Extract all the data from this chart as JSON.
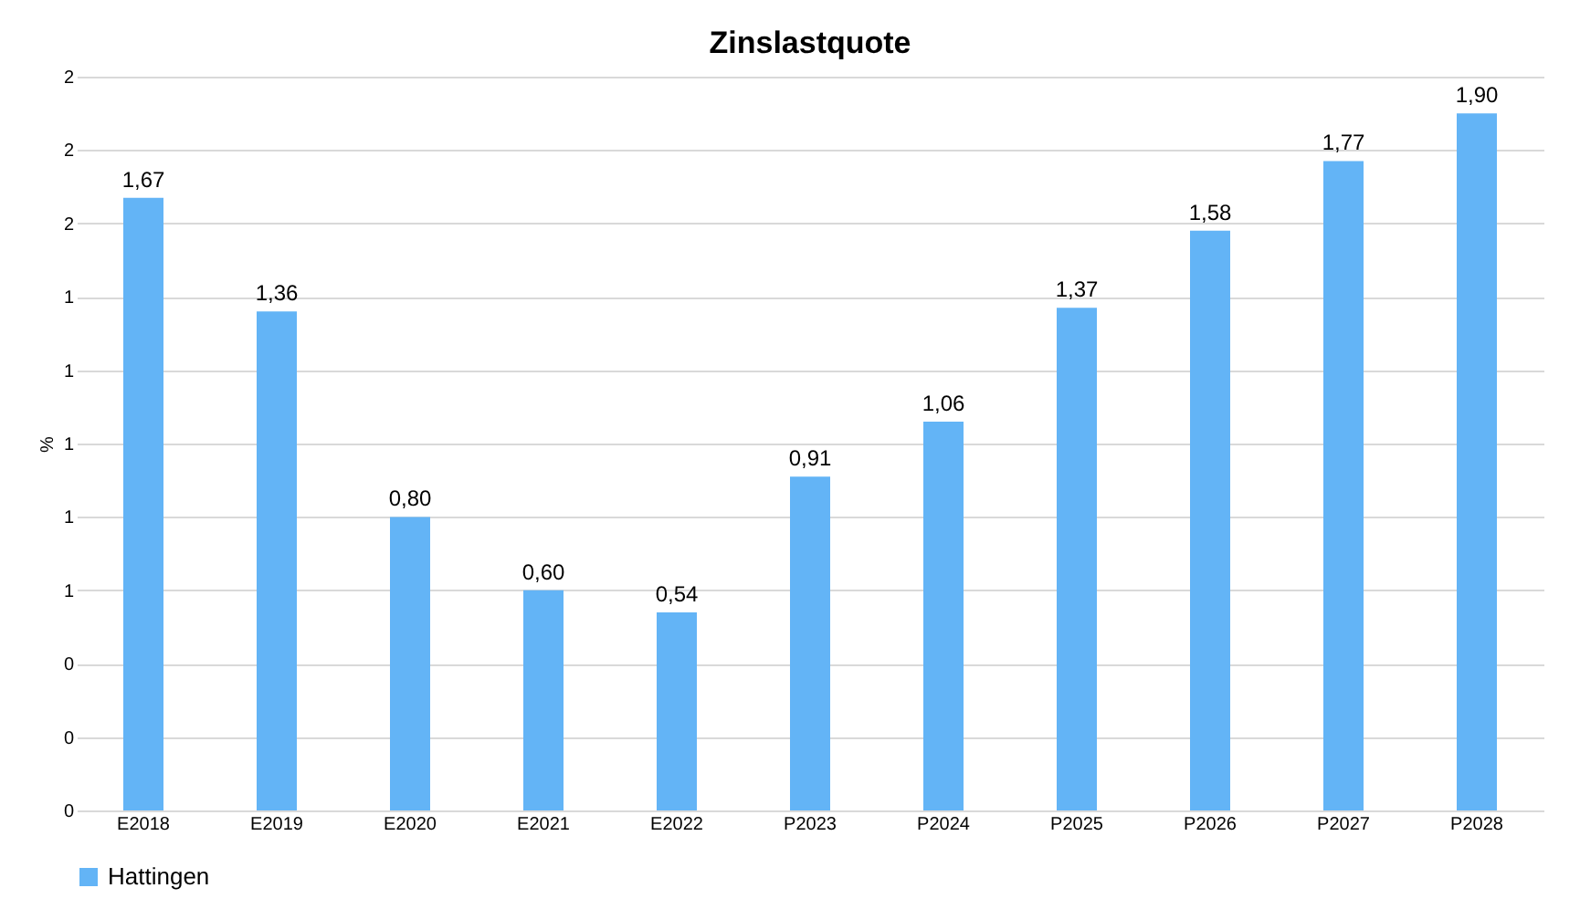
{
  "chart_data": {
    "type": "bar",
    "title": "Zinslastquote",
    "ylabel": "%",
    "categories": [
      "E2018",
      "E2019",
      "E2020",
      "E2021",
      "E2022",
      "P2023",
      "P2024",
      "P2025",
      "P2026",
      "P2027",
      "P2028"
    ],
    "series": [
      {
        "name": "Hattingen",
        "color": "#63b4f6",
        "values": [
          1.67,
          1.36,
          0.8,
          0.6,
          0.54,
          0.91,
          1.06,
          1.37,
          1.58,
          1.77,
          1.9
        ],
        "value_labels": [
          "1,67",
          "1,36",
          "0,80",
          "0,60",
          "0,54",
          "0,91",
          "1,06",
          "1,37",
          "1,58",
          "1,77",
          "1,90"
        ]
      }
    ],
    "ylim": [
      0,
      2.0
    ],
    "yticks": [
      {
        "value": 0,
        "label": "0"
      },
      {
        "value": 0.2,
        "label": "0"
      },
      {
        "value": 0.4,
        "label": "0"
      },
      {
        "value": 0.6,
        "label": "1"
      },
      {
        "value": 0.8,
        "label": "1"
      },
      {
        "value": 1.0,
        "label": "1"
      },
      {
        "value": 1.2,
        "label": "1"
      },
      {
        "value": 1.4,
        "label": "1"
      },
      {
        "value": 1.6,
        "label": "2"
      },
      {
        "value": 1.8,
        "label": "2"
      },
      {
        "value": 2.0,
        "label": "2"
      }
    ],
    "grid": "y",
    "legend": "bottom"
  }
}
